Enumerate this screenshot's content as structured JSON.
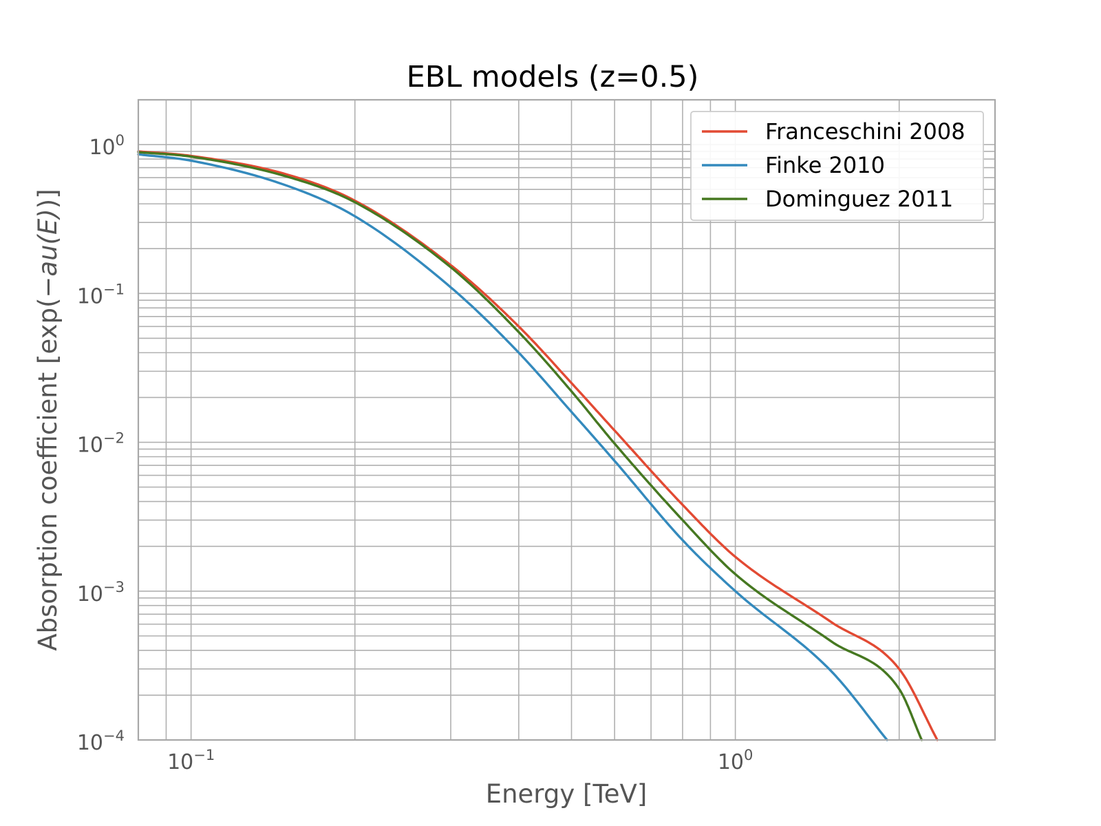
{
  "chart_data": {
    "type": "line",
    "title": "EBL models (z=0.5)",
    "xlabel": "Energy [TeV]",
    "ylabel_prefix": "Absorption coefficient [exp(",
    "ylabel_math": "−au(E)",
    "ylabel_suffix": ")]",
    "xscale": "log",
    "yscale": "log",
    "xlim": [
      0.08,
      3.0
    ],
    "ylim": [
      0.0001,
      2.0
    ],
    "grid": true,
    "legend_position": "top-right",
    "x_tick_labels": [
      {
        "value": 0.1,
        "base": "10",
        "exp": "−1"
      },
      {
        "value": 1,
        "base": "10",
        "exp": "0"
      }
    ],
    "y_tick_labels": [
      {
        "value": 1,
        "base": "10",
        "exp": "0"
      },
      {
        "value": 0.1,
        "base": "10",
        "exp": "−1"
      },
      {
        "value": 0.01,
        "base": "10",
        "exp": "−2"
      },
      {
        "value": 0.001,
        "base": "10",
        "exp": "−3"
      },
      {
        "value": 0.0001,
        "base": "10",
        "exp": "−4"
      }
    ],
    "series": [
      {
        "name": "Franceschini 2008",
        "color": "#E24A33",
        "points": [
          [
            0.08,
            0.9
          ],
          [
            0.1,
            0.84
          ],
          [
            0.15,
            0.63
          ],
          [
            0.2,
            0.42
          ],
          [
            0.3,
            0.155
          ],
          [
            0.4,
            0.06
          ],
          [
            0.5,
            0.025
          ],
          [
            0.6,
            0.012
          ],
          [
            0.8,
            0.0038
          ],
          [
            1.0,
            0.0017
          ],
          [
            1.5,
            0.00062
          ],
          [
            2.0,
            0.0003
          ],
          [
            2.35,
            0.0001
          ]
        ]
      },
      {
        "name": "Finke 2010",
        "color": "#348ABD",
        "points": [
          [
            0.08,
            0.86
          ],
          [
            0.1,
            0.78
          ],
          [
            0.15,
            0.53
          ],
          [
            0.2,
            0.33
          ],
          [
            0.3,
            0.11
          ],
          [
            0.4,
            0.04
          ],
          [
            0.5,
            0.016
          ],
          [
            0.6,
            0.0075
          ],
          [
            0.8,
            0.0022
          ],
          [
            1.0,
            0.001
          ],
          [
            1.5,
            0.00029
          ],
          [
            1.9,
            0.0001
          ]
        ]
      },
      {
        "name": "Dominguez 2011",
        "color": "#467821",
        "points": [
          [
            0.08,
            0.89
          ],
          [
            0.1,
            0.83
          ],
          [
            0.15,
            0.61
          ],
          [
            0.2,
            0.41
          ],
          [
            0.3,
            0.15
          ],
          [
            0.4,
            0.055
          ],
          [
            0.5,
            0.022
          ],
          [
            0.6,
            0.0098
          ],
          [
            0.8,
            0.003
          ],
          [
            1.0,
            0.0013
          ],
          [
            1.5,
            0.00046
          ],
          [
            2.0,
            0.00022
          ],
          [
            2.2,
            0.0001
          ]
        ]
      }
    ]
  }
}
